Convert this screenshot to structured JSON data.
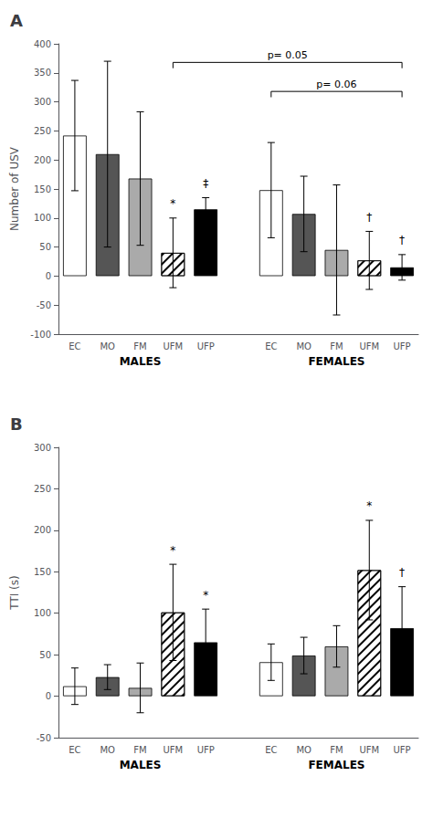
{
  "chart_data": [
    {
      "type": "bar",
      "title": "A",
      "ylabel": "Number of USV",
      "ylim": [
        -100,
        400
      ],
      "yticks": [
        -100,
        -50,
        0,
        50,
        100,
        150,
        200,
        250,
        300,
        350,
        400
      ],
      "grid": false,
      "groups": [
        {
          "label": "MALES",
          "categories": [
            "EC",
            "MO",
            "FM",
            "UFM",
            "UFP"
          ],
          "values": [
            242,
            210,
            168,
            40,
            115
          ],
          "errors": [
            95,
            160,
            115,
            60,
            20
          ],
          "colors": [
            "white",
            "#555555",
            "#aaaaaa",
            "hatch",
            "black"
          ],
          "sig_labels": [
            null,
            null,
            null,
            "*",
            "‡"
          ]
        },
        {
          "label": "FEMALES",
          "categories": [
            "EC",
            "MO",
            "FM",
            "UFM",
            "UFP"
          ],
          "values": [
            148,
            107,
            45,
            27,
            15
          ],
          "errors": [
            82,
            65,
            112,
            50,
            22
          ],
          "colors": [
            "white",
            "#555555",
            "#aaaaaa",
            "hatch",
            "black"
          ],
          "sig_labels": [
            null,
            null,
            null,
            "†",
            "†"
          ]
        }
      ],
      "brackets": [
        {
          "label": "p= 0.05",
          "y": 368,
          "from": {
            "group": "MALES",
            "category": "UFM"
          },
          "to": {
            "group": "FEMALES",
            "category": "UFP"
          }
        },
        {
          "label": "p= 0.06",
          "y": 318,
          "from": {
            "group": "FEMALES",
            "category": "EC"
          },
          "to": {
            "group": "FEMALES",
            "category": "UFP"
          }
        }
      ]
    },
    {
      "type": "bar",
      "title": "B",
      "ylabel": "TTI (s)",
      "ylim": [
        -50,
        300
      ],
      "yticks": [
        -50,
        0,
        50,
        100,
        150,
        200,
        250,
        300
      ],
      "grid": false,
      "groups": [
        {
          "label": "MALES",
          "categories": [
            "EC",
            "MO",
            "FM",
            "UFM",
            "UFP"
          ],
          "values": [
            12,
            23,
            10,
            101,
            65
          ],
          "errors": [
            22,
            15,
            30,
            58,
            40
          ],
          "colors": [
            "white",
            "#555555",
            "#aaaaaa",
            "hatch",
            "black"
          ],
          "sig_labels": [
            null,
            null,
            null,
            "*",
            "*"
          ]
        },
        {
          "label": "FEMALES",
          "categories": [
            "EC",
            "MO",
            "FM",
            "UFM",
            "UFP"
          ],
          "values": [
            41,
            49,
            60,
            152,
            82
          ],
          "errors": [
            22,
            22,
            25,
            60,
            50
          ],
          "colors": [
            "white",
            "#555555",
            "#aaaaaa",
            "hatch",
            "black"
          ],
          "sig_labels": [
            null,
            null,
            null,
            "*",
            "†"
          ]
        }
      ]
    }
  ]
}
